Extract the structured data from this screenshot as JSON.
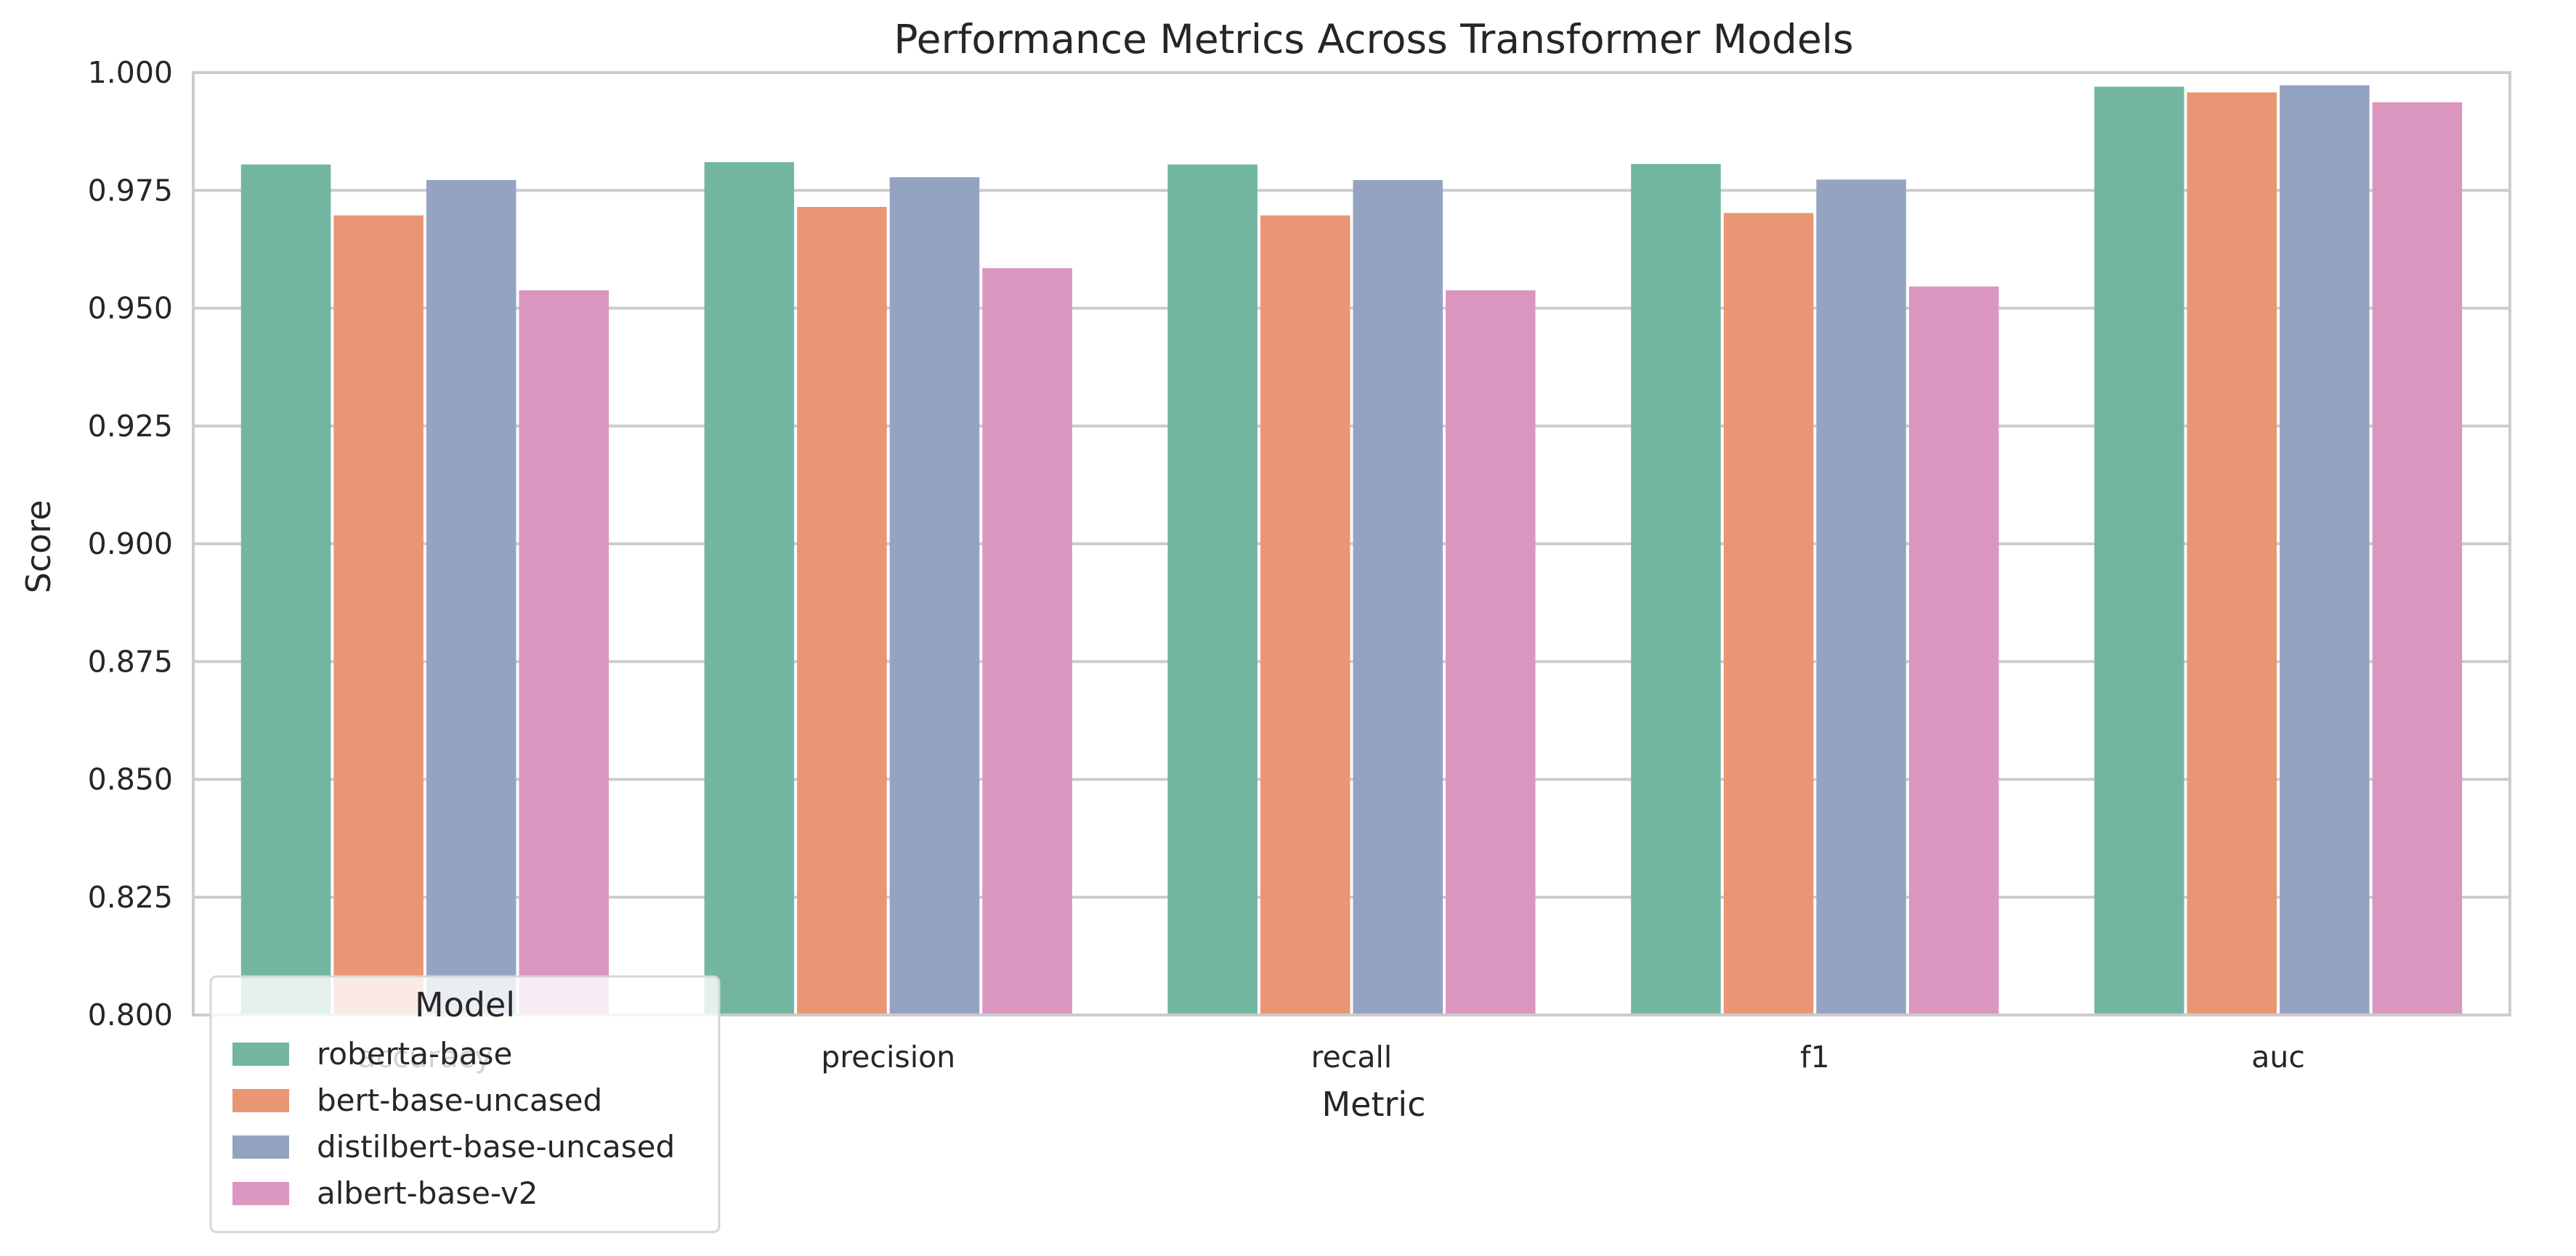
{
  "chart_data": {
    "type": "bar",
    "title": "Performance Metrics Across Transformer Models",
    "xlabel": "Metric",
    "ylabel": "Score",
    "ylim": [
      0.8,
      1.0
    ],
    "yticks": [
      "0.800",
      "0.825",
      "0.850",
      "0.875",
      "0.900",
      "0.925",
      "0.950",
      "0.975",
      "1.000"
    ],
    "categories": [
      "accuracy",
      "precision",
      "recall",
      "f1",
      "auc"
    ],
    "grid": true,
    "legend": {
      "title": "Model",
      "position": "lower-left"
    },
    "series": [
      {
        "name": "roberta-base",
        "color": "#72b6a1",
        "values": [
          0.9805,
          0.981,
          0.9805,
          0.9806,
          0.997
        ]
      },
      {
        "name": "bert-base-uncased",
        "color": "#e99675",
        "values": [
          0.9697,
          0.9715,
          0.9697,
          0.9702,
          0.9958
        ]
      },
      {
        "name": "distilbert-base-uncased",
        "color": "#95a3c3",
        "values": [
          0.9772,
          0.9778,
          0.9772,
          0.9773,
          0.9973
        ]
      },
      {
        "name": "albert-base-v2",
        "color": "#db96c0",
        "values": [
          0.9538,
          0.9585,
          0.9538,
          0.9546,
          0.9937
        ]
      }
    ]
  }
}
